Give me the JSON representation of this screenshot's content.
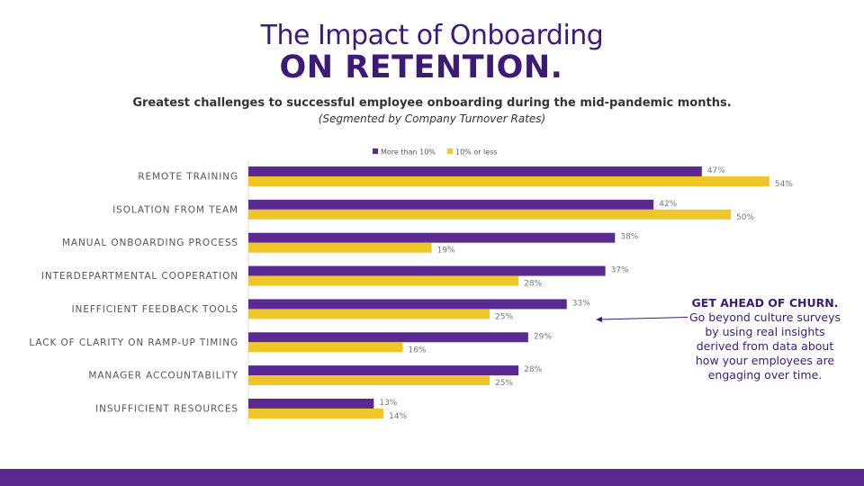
{
  "title_line1": "The Impact of Onboarding",
  "title_line2": "ON RETENTION.",
  "subtitle": "Greatest challenges to successful employee onboarding during the mid-pandemic months.",
  "subnote": "(Segmented by Company Turnover Rates)",
  "callout": {
    "heading": "GET AHEAD OF CHURN.",
    "body": "Go beyond culture surveys by using real insights derived from data about how your employees are engaging over time."
  },
  "colors": {
    "title": "#3d1a78",
    "series1": "#5b2a91",
    "series2": "#f0c52a",
    "footer": "#5b2a91"
  },
  "chart_data": {
    "type": "bar",
    "orientation": "horizontal",
    "categories": [
      "REMOTE TRAINING",
      "ISOLATION FROM TEAM",
      "MANUAL ONBOARDING PROCESS",
      "INTERDEPARTMENTAL COOPERATION",
      "INEFFICIENT FEEDBACK TOOLS",
      "LACK OF CLARITY ON RAMP-UP TIMING",
      "MANAGER ACCOUNTABILITY",
      "INSUFFICIENT RESOURCES"
    ],
    "series": [
      {
        "name": "More than 10%",
        "values": [
          47,
          42,
          38,
          37,
          33,
          29,
          28,
          13
        ],
        "color": "#5b2a91"
      },
      {
        "name": "10% or less",
        "values": [
          54,
          50,
          19,
          28,
          25,
          16,
          25,
          14
        ],
        "color": "#f0c52a"
      }
    ],
    "value_suffix": "%",
    "xlim": [
      0,
      60
    ],
    "legend_position": "top",
    "grid": false
  }
}
